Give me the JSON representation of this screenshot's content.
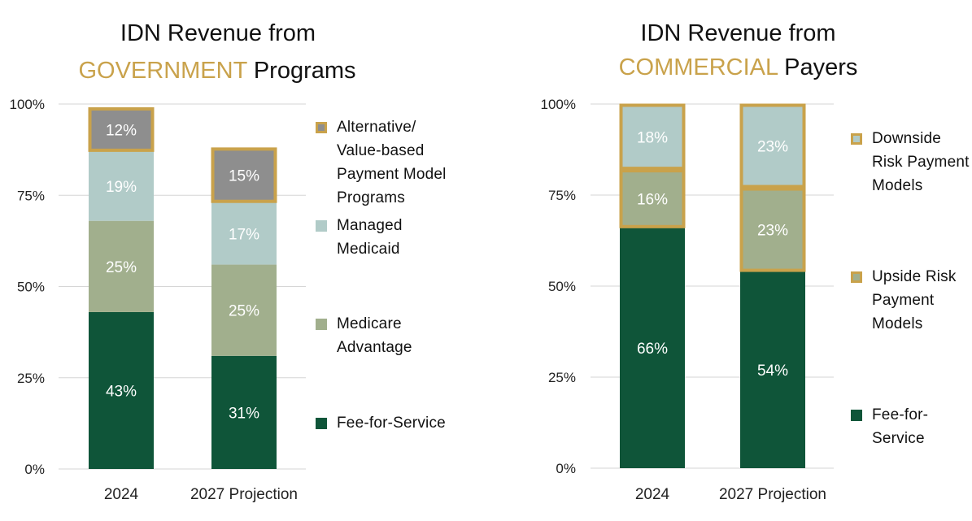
{
  "colors": {
    "fee_for_service": "#0F5539",
    "medicare_advantage": "#A1AF8D",
    "managed_medicaid": "#B1CBC8",
    "value_based": "#8E8E8E",
    "highlight_border": "#C9A24B",
    "grid": "#D6D6D6",
    "axis_text": "#222222",
    "bar_label_light": "#FFFFFF"
  },
  "chart_data": [
    {
      "type": "bar",
      "stacked": true,
      "title": {
        "line1": "IDN Revenue from",
        "line2_highlight": "GOVERNMENT",
        "line2_rest": " Programs"
      },
      "categories": [
        "2024",
        "2027 Projection"
      ],
      "y_ticks": [
        "0%",
        "25%",
        "50%",
        "75%",
        "100%"
      ],
      "ylim": [
        0,
        100
      ],
      "grid": true,
      "legend_position": "right",
      "series": [
        {
          "name": "Fee-for-Service",
          "values": [
            43,
            31
          ],
          "labels": [
            "43%",
            "31%"
          ],
          "color_key": "fee_for_service",
          "framed": false
        },
        {
          "name": "Medicare\nAdvantage",
          "values": [
            25,
            25
          ],
          "labels": [
            "25%",
            "25%"
          ],
          "color_key": "medicare_advantage",
          "framed": false
        },
        {
          "name": "Managed\nMedicaid",
          "values": [
            19,
            17
          ],
          "labels": [
            "19%",
            "17%"
          ],
          "color_key": "managed_medicaid",
          "framed": false
        },
        {
          "name": "Alternative/\nValue-based\nPayment Model\nPrograms",
          "values": [
            12,
            15
          ],
          "labels": [
            "12%",
            "15%"
          ],
          "color_key": "value_based",
          "framed": true
        }
      ]
    },
    {
      "type": "bar",
      "stacked": true,
      "title": {
        "line1": "IDN Revenue from",
        "line2_highlight": "COMMERCIAL",
        "line2_rest": " Payers"
      },
      "categories": [
        "2024",
        "2027 Projection"
      ],
      "y_ticks": [
        "0%",
        "25%",
        "50%",
        "75%",
        "100%"
      ],
      "ylim": [
        0,
        100
      ],
      "grid": true,
      "legend_position": "right",
      "series": [
        {
          "name": "Fee-for-\nService",
          "values": [
            66,
            54
          ],
          "labels": [
            "66%",
            "54%"
          ],
          "color_key": "fee_for_service",
          "framed": false
        },
        {
          "name": "Upside Risk\nPayment\nModels",
          "values": [
            16,
            23
          ],
          "labels": [
            "16%",
            "23%"
          ],
          "color_key": "medicare_advantage",
          "framed": true
        },
        {
          "name": "Downside\nRisk Payment\nModels",
          "values": [
            18,
            23
          ],
          "labels": [
            "18%",
            "23%"
          ],
          "color_key": "managed_medicaid",
          "framed": true
        }
      ]
    }
  ]
}
